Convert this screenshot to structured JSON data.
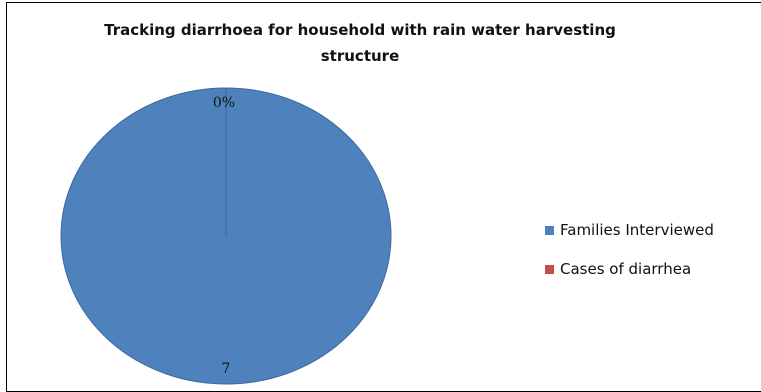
{
  "chart_data": {
    "type": "pie",
    "title": "Tracking diarrhoea for household with rain water harvesting structure",
    "title_lines": [
      "Tracking diarrhoea for household with rain water harvesting",
      "structure"
    ],
    "categories": [
      "Families Interviewed",
      "Cases of diarrhea"
    ],
    "values": [
      7,
      0
    ],
    "data_labels": [
      "7",
      "0%"
    ],
    "colors": [
      "#4F81BD",
      "#C0504D"
    ],
    "legend_position": "right"
  }
}
